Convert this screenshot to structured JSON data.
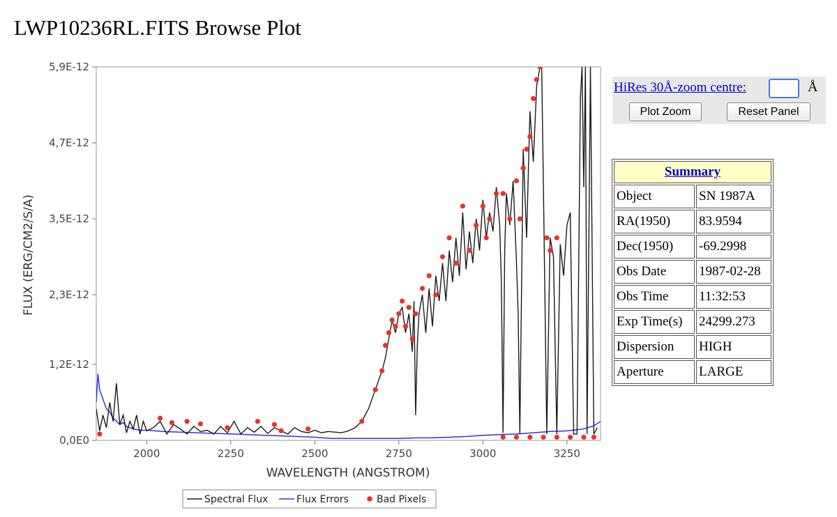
{
  "page_title": "LWP10236RL.FITS Browse Plot",
  "zoom_panel": {
    "link_label": "HiRes 30Å-zoom centre:",
    "input_value": "",
    "unit": "Å",
    "plot_zoom_label": "Plot Zoom",
    "reset_panel_label": "Reset Panel"
  },
  "summary": {
    "header": "Summary",
    "rows": [
      {
        "key": "Object",
        "value": "SN 1987A"
      },
      {
        "key": "RA(1950)",
        "value": "83.9594"
      },
      {
        "key": "Dec(1950)",
        "value": "-69.2998"
      },
      {
        "key": "Obs Date",
        "value": "1987-02-28"
      },
      {
        "key": "Obs Time",
        "value": "11:32:53"
      },
      {
        "key": "Exp Time(s)",
        "value": "24299.273"
      },
      {
        "key": "Dispersion",
        "value": "HIGH"
      },
      {
        "key": "Aperture",
        "value": "LARGE"
      }
    ]
  },
  "chart_data": {
    "type": "line",
    "xlabel": "WAVELENGTH (ANGSTROM)",
    "ylabel": "FLUX (ERG/CM2/S/A)",
    "xlim": [
      1850,
      3350
    ],
    "ylim": [
      0,
      5.9e-12
    ],
    "x_ticks": [
      2000,
      2250,
      2500,
      2750,
      3000,
      3250
    ],
    "x_tick_labels": [
      "2000",
      "2250",
      "2500",
      "2750",
      "3000",
      "3250"
    ],
    "y_ticks": [
      0,
      1.2e-12,
      2.3e-12,
      3.5e-12,
      4.7e-12,
      5.9e-12
    ],
    "y_tick_labels": [
      "0,0E0",
      "1,2E-12",
      "2,3E-12",
      "3,5E-12",
      "4,7E-12",
      "5,9E-12"
    ],
    "legend_position": "bottom-center",
    "colors": {
      "flux": "#1a1a1a",
      "errors": "#2a36d6",
      "bad": "#e8322a"
    },
    "series": [
      {
        "name": "Spectral Flux",
        "x": [
          1850,
          1860,
          1870,
          1880,
          1890,
          1900,
          1910,
          1920,
          1930,
          1940,
          1950,
          1960,
          1970,
          1980,
          1990,
          2000,
          2020,
          2040,
          2060,
          2080,
          2100,
          2120,
          2140,
          2160,
          2180,
          2200,
          2220,
          2240,
          2260,
          2280,
          2300,
          2320,
          2340,
          2360,
          2380,
          2400,
          2420,
          2440,
          2460,
          2480,
          2500,
          2520,
          2540,
          2560,
          2580,
          2600,
          2620,
          2640,
          2660,
          2680,
          2700,
          2710,
          2720,
          2730,
          2740,
          2750,
          2760,
          2770,
          2780,
          2790,
          2795,
          2800,
          2805,
          2810,
          2820,
          2830,
          2840,
          2850,
          2860,
          2870,
          2880,
          2890,
          2900,
          2910,
          2920,
          2930,
          2940,
          2950,
          2960,
          2970,
          2980,
          2990,
          3000,
          3010,
          3020,
          3030,
          3040,
          3050,
          3055,
          3060,
          3065,
          3070,
          3080,
          3090,
          3100,
          3105,
          3110,
          3120,
          3130,
          3140,
          3150,
          3160,
          3170,
          3175,
          3180,
          3190,
          3200,
          3210,
          3220,
          3230,
          3240,
          3250,
          3260,
          3270,
          3280,
          3290,
          3295,
          3300,
          3305,
          3310,
          3320,
          3330,
          3340
        ],
        "values": [
          5e-13,
          1.5e-13,
          4e-13,
          2e-13,
          6e-13,
          3e-13,
          9e-13,
          2.5e-13,
          4e-13,
          1.2e-13,
          3e-13,
          1.8e-13,
          4e-13,
          1e-13,
          3e-13,
          1.5e-13,
          2e-13,
          3e-13,
          1e-13,
          2.5e-13,
          1.8e-13,
          1e-13,
          2.2e-13,
          1.4e-13,
          1.6e-13,
          1e-13,
          2.2e-13,
          1.2e-13,
          3e-13,
          1e-13,
          2e-13,
          1.3e-13,
          2.2e-13,
          1.1e-13,
          2e-13,
          1.5e-13,
          1e-13,
          2e-13,
          1.4e-13,
          1.2e-13,
          1.6e-13,
          1.2e-13,
          1.4e-13,
          1.3e-13,
          1.2e-13,
          1.5e-13,
          2e-13,
          3e-13,
          5e-13,
          8e-13,
          1.1e-12,
          1.3e-12,
          1.6e-12,
          1.9e-12,
          1.7e-12,
          2e-12,
          2.1e-12,
          1.7e-12,
          2e-12,
          1.4e-12,
          2.2e-12,
          4e-13,
          1.5e-12,
          2e-12,
          2.3e-12,
          1.7e-12,
          2.4e-12,
          1.8e-12,
          2.6e-12,
          2.2e-12,
          2.8e-12,
          2.2e-12,
          3e-12,
          2.5e-12,
          3.2e-12,
          2.6e-12,
          3.6e-12,
          2.7e-12,
          3.3e-12,
          2.8e-12,
          3.5e-12,
          3e-12,
          3.8e-12,
          3.2e-12,
          3.6e-12,
          3.3e-12,
          4e-12,
          3.4e-12,
          2.5e-12,
          1.2e-13,
          3e-12,
          3.9e-12,
          3.4e-12,
          4.1e-12,
          2.8e-12,
          2e-12,
          1e-13,
          4.6e-12,
          3.2e-12,
          5.2e-12,
          4.4e-12,
          5.6e-12,
          6.2e-12,
          6.5e-12,
          4e-12,
          1e-13,
          3.2e-12,
          2.9e-12,
          1e-13,
          3.1e-12,
          2.6e-12,
          3.4e-12,
          3.6e-12,
          1e-13,
          1e-13,
          5.4e-12,
          6.5e-12,
          4e-12,
          6.5e-12,
          1e-13,
          6.5e-12,
          1e-13,
          2e-13
        ]
      },
      {
        "name": "Flux Errors",
        "x": [
          1850,
          1855,
          1860,
          1870,
          1880,
          1890,
          1900,
          1910,
          1920,
          1930,
          1940,
          1950,
          1960,
          1980,
          2000,
          2050,
          2100,
          2150,
          2200,
          2250,
          2300,
          2350,
          2400,
          2450,
          2500,
          2550,
          2600,
          2650,
          2700,
          2750,
          2800,
          2850,
          2900,
          2950,
          3000,
          3050,
          3100,
          3150,
          3200,
          3250,
          3300,
          3330,
          3350
        ],
        "values": [
          6e-13,
          1.05e-12,
          8e-13,
          6.5e-13,
          5e-13,
          4.5e-13,
          3.5e-13,
          3e-13,
          2.5e-13,
          2.8e-13,
          2.2e-13,
          2e-13,
          1.8e-13,
          1.6e-13,
          1.6e-13,
          1.4e-13,
          1.3e-13,
          1.2e-13,
          1.1e-13,
          1e-13,
          9e-14,
          8e-14,
          7e-14,
          6e-14,
          5e-14,
          3e-14,
          3e-14,
          3e-14,
          3e-14,
          3e-14,
          4e-14,
          4e-14,
          5e-14,
          6e-14,
          8e-14,
          9e-14,
          1e-13,
          1.2e-13,
          1.4e-13,
          1.5e-13,
          1.8e-13,
          2.3e-13,
          3e-13
        ]
      },
      {
        "name": "Bad Pixels",
        "x": [
          1860,
          2040,
          2075,
          2120,
          2160,
          2240,
          2330,
          2380,
          2400,
          2480,
          2640,
          2680,
          2700,
          2710,
          2720,
          2730,
          2740,
          2750,
          2760,
          2770,
          2780,
          2790,
          2800,
          2820,
          2840,
          2860,
          2880,
          2900,
          2920,
          2940,
          2960,
          2980,
          3000,
          3010,
          3020,
          3040,
          3060,
          3080,
          3100,
          3110,
          3120,
          3130,
          3140,
          3150,
          3160,
          3170,
          3190,
          3200,
          3220,
          3060,
          3100,
          3140,
          3180,
          3220,
          3260,
          3300,
          3330
        ],
        "values": [
          1e-13,
          3.5e-13,
          2.8e-13,
          3e-13,
          2.6e-13,
          2e-13,
          3e-13,
          2.5e-13,
          1.5e-13,
          1.8e-13,
          3e-13,
          8e-13,
          1.1e-12,
          1.5e-12,
          1.7e-12,
          1.9e-12,
          1.8e-12,
          2e-12,
          2.2e-12,
          1.8e-12,
          2.1e-12,
          1.6e-12,
          2e-12,
          2.4e-12,
          2.6e-12,
          2.3e-12,
          2.9e-12,
          3.2e-12,
          2.8e-12,
          3.7e-12,
          3e-12,
          3.4e-12,
          3.7e-12,
          3.2e-12,
          3.5e-12,
          3.9e-12,
          3.9e-12,
          3.5e-12,
          4.1e-12,
          3.5e-12,
          4.3e-12,
          4.6e-12,
          4.8e-12,
          5.4e-12,
          5.7e-12,
          5.9e-12,
          3.2e-12,
          3e-12,
          3.2e-12,
          5e-14,
          5e-14,
          5e-14,
          5e-14,
          5e-14,
          5e-14,
          5e-14,
          5e-14
        ]
      }
    ]
  }
}
